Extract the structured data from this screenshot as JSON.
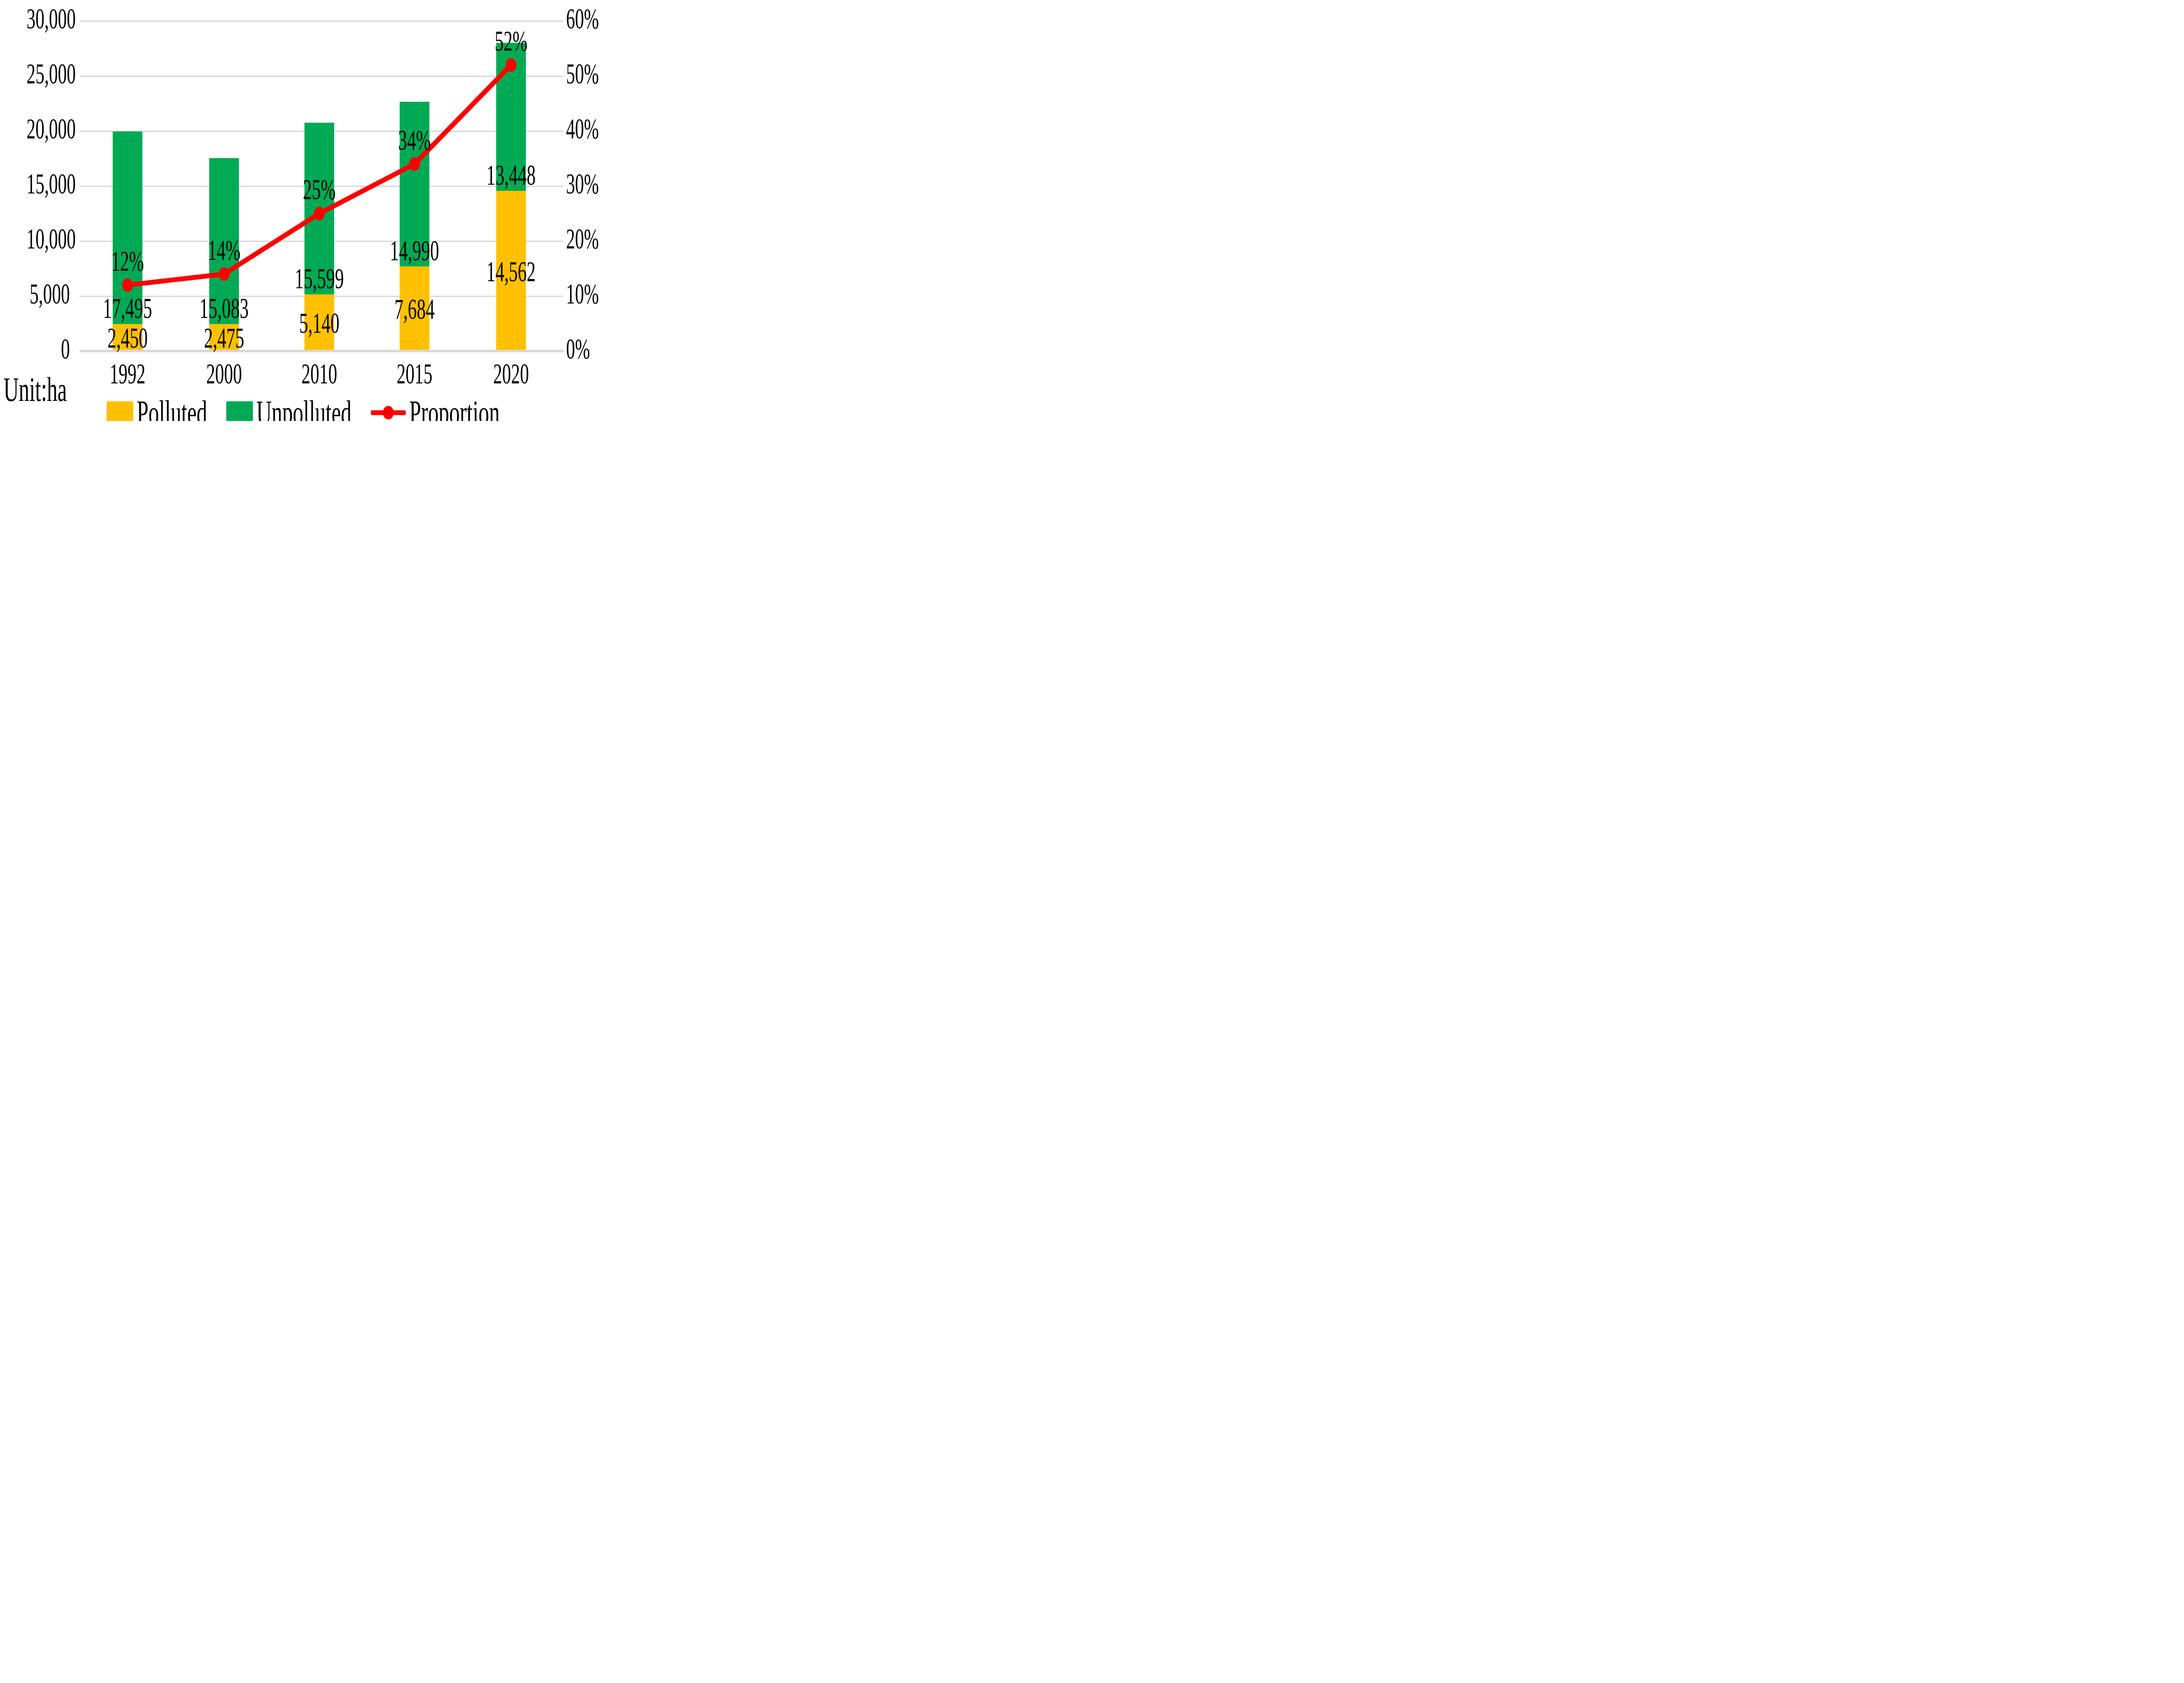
{
  "chart_data": {
    "type": "combo",
    "unit_note": "Unit:ha",
    "categories": [
      "1992",
      "2000",
      "2010",
      "2015",
      "2020"
    ],
    "series": [
      {
        "name": "Polluted",
        "type": "bar",
        "stack": "farmland",
        "color": "#FFC000",
        "values": [
          2450,
          2475,
          5140,
          7684,
          14562
        ],
        "value_labels": [
          "2,450",
          "2,475",
          "5,140",
          "7,684",
          "14,562"
        ]
      },
      {
        "name": "Unpolluted",
        "type": "bar",
        "stack": "farmland",
        "color": "#00AA55",
        "values": [
          17495,
          15083,
          15599,
          14990,
          13448
        ],
        "value_labels": [
          "17,495",
          "15,083",
          "15,599",
          "14,990",
          "13,448"
        ]
      },
      {
        "name": "Proportion",
        "type": "line",
        "axis": "right",
        "color": "#FF0000",
        "marker": "circle",
        "values": [
          12,
          14,
          25,
          34,
          52
        ],
        "value_labels": [
          "12%",
          "14%",
          "25%",
          "34%",
          "52%"
        ]
      }
    ],
    "left_axis": {
      "min": 0,
      "max": 30000,
      "step": 5000,
      "tick_labels": [
        "0",
        "5,000",
        "10,000",
        "15,000",
        "20,000",
        "25,000",
        "30,000"
      ]
    },
    "right_axis": {
      "min": 0,
      "max": 60,
      "step": 10,
      "tick_labels": [
        "0%",
        "10%",
        "20%",
        "30%",
        "40%",
        "50%",
        "60%"
      ]
    },
    "grid": {
      "on": true,
      "color": "#D9D9D9"
    },
    "legend": {
      "position": "bottom",
      "items": [
        "Polluted",
        "Unpolluted",
        "Proportion"
      ]
    },
    "text_color": "#000000",
    "background": "#FFFFFF"
  }
}
